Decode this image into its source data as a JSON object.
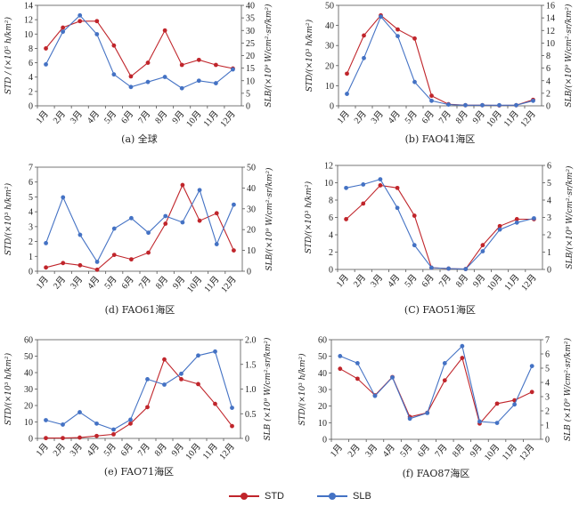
{
  "colors": {
    "STD": "#c0252b",
    "SLB": "#4472c4"
  },
  "legend": {
    "std_label": "STD",
    "slb_label": "SLB"
  },
  "chart_data": [
    {
      "type": "line",
      "caption": "(a) 全球",
      "categories": [
        "1月",
        "2月",
        "3月",
        "4月",
        "5月",
        "6月",
        "7月",
        "8月",
        "9月",
        "10月",
        "11月",
        "12月"
      ],
      "ylabel_left": "STD / (×10⁵ h/km²)",
      "ylabel_right": "SLB/(×10⁹ W/cm²·sr/km²)",
      "ylim_left": [
        0,
        14
      ],
      "yticks_left": [
        0,
        2,
        4,
        6,
        8,
        10,
        12,
        14
      ],
      "ylim_right": [
        0,
        40
      ],
      "yticks_right": [
        0,
        5,
        10,
        15,
        20,
        25,
        30,
        35,
        40
      ],
      "series": [
        {
          "name": "STD",
          "axis": "left",
          "values": [
            8.0,
            10.9,
            11.8,
            11.8,
            8.4,
            4.1,
            6.0,
            10.5,
            5.7,
            6.4,
            5.7,
            5.2
          ]
        },
        {
          "name": "SLB",
          "axis": "right",
          "values": [
            16.5,
            29.5,
            36.0,
            28.5,
            12.5,
            7.5,
            9.5,
            11.5,
            7.0,
            10.0,
            9.0,
            14.5
          ]
        }
      ]
    },
    {
      "type": "line",
      "caption": "(b) FAO41海区",
      "categories": [
        "1月",
        "2月",
        "3月",
        "4月",
        "5月",
        "6月",
        "7月",
        "8月",
        "9月",
        "10月",
        "11月",
        "12月"
      ],
      "ylabel_left": "STD/(×10³ h/km²)",
      "ylabel_right": "SLB/(×10⁹ W/cm²·sr/km²)",
      "ylim_left": [
        0,
        50
      ],
      "yticks_left": [
        0,
        10,
        20,
        30,
        40,
        50
      ],
      "ylim_right": [
        0,
        16
      ],
      "yticks_right": [
        0,
        2,
        4,
        6,
        8,
        10,
        12,
        14,
        16
      ],
      "series": [
        {
          "name": "STD",
          "axis": "left",
          "values": [
            16,
            35,
            45,
            38,
            33.5,
            5,
            0.8,
            0.3,
            0.3,
            0.2,
            0.3,
            3
          ]
        },
        {
          "name": "SLB",
          "axis": "right",
          "values": [
            1.9,
            7.6,
            14.2,
            11.1,
            3.8,
            0.8,
            0.2,
            0.1,
            0.1,
            0.1,
            0.1,
            0.8
          ]
        }
      ]
    },
    {
      "type": "line",
      "caption": "(d) FAO61海区",
      "categories": [
        "1月",
        "2月",
        "3月",
        "4月",
        "5月",
        "6月",
        "7月",
        "8月",
        "9月",
        "10月",
        "11月",
        "12月"
      ],
      "ylabel_left": "STD/(×10³ h/km²)",
      "ylabel_right": "SLB/(×10⁹ W/cm²·sr/km²)",
      "ylim_left": [
        0,
        7
      ],
      "yticks_left": [
        0,
        1,
        2,
        3,
        4,
        5,
        6,
        7
      ],
      "ylim_right": [
        0,
        50
      ],
      "yticks_right": [
        0,
        10,
        20,
        30,
        40,
        50
      ],
      "series": [
        {
          "name": "STD",
          "axis": "left",
          "values": [
            0.25,
            0.55,
            0.4,
            0.1,
            1.1,
            0.8,
            1.25,
            3.2,
            5.8,
            3.4,
            3.9,
            1.4
          ]
        },
        {
          "name": "SLB",
          "axis": "right",
          "values": [
            13.5,
            35.5,
            17.5,
            4.5,
            20.5,
            25.5,
            18.5,
            26.5,
            23.5,
            39.0,
            13.0,
            32.0
          ]
        }
      ]
    },
    {
      "type": "line",
      "caption": "(C) FAO51海区",
      "categories": [
        "1月",
        "2月",
        "3月",
        "4月",
        "5月",
        "6月",
        "7月",
        "8月",
        "9月",
        "10月",
        "11月",
        "12月"
      ],
      "ylabel_left": "STD/(×10³ h/km²)",
      "ylabel_right": "SLB/(×10⁹ W/cm²·sr/km²)",
      "ylim_left": [
        0,
        12
      ],
      "yticks_left": [
        0,
        2,
        4,
        6,
        8,
        10,
        12
      ],
      "ylim_right": [
        0,
        6
      ],
      "yticks_right": [
        0,
        1,
        2,
        3,
        4,
        5,
        6
      ],
      "series": [
        {
          "name": "STD",
          "axis": "left",
          "values": [
            5.8,
            7.6,
            9.7,
            9.4,
            6.2,
            0.2,
            0.1,
            0.05,
            2.8,
            5.0,
            5.8,
            5.8
          ]
        },
        {
          "name": "SLB",
          "axis": "right",
          "values": [
            4.7,
            4.9,
            5.2,
            3.55,
            1.4,
            0.1,
            0.05,
            0.02,
            1.05,
            2.3,
            2.7,
            2.95
          ]
        }
      ]
    },
    {
      "type": "line",
      "caption": "(e) FAO71海区",
      "categories": [
        "1月",
        "2月",
        "3月",
        "4月",
        "5月",
        "6月",
        "7月",
        "8月",
        "9月",
        "10月",
        "11月",
        "12月"
      ],
      "ylabel_left": "STD/(×10³ h/km²)",
      "ylabel_right": "SLB (×10⁹ W/cm²·sr/km²)",
      "ylim_left": [
        0,
        60
      ],
      "yticks_left": [
        0,
        10,
        20,
        30,
        40,
        50,
        60
      ],
      "ylim_right": [
        0,
        2.0
      ],
      "yticks_right": [
        0,
        0.5,
        1.0,
        1.5,
        2.0
      ],
      "series": [
        {
          "name": "STD",
          "axis": "left",
          "values": [
            0.2,
            0.2,
            0.5,
            1.5,
            2.5,
            9,
            19,
            48,
            36,
            33,
            21,
            7.5
          ]
        },
        {
          "name": "SLB",
          "axis": "right",
          "values": [
            0.37,
            0.28,
            0.53,
            0.3,
            0.18,
            0.38,
            1.2,
            1.09,
            1.31,
            1.68,
            1.76,
            0.62
          ]
        }
      ]
    },
    {
      "type": "line",
      "caption": "(f) FAO87海区",
      "categories": [
        "1月",
        "2月",
        "3月",
        "4月",
        "5月",
        "6月",
        "7月",
        "8月",
        "9月",
        "10月",
        "11月",
        "12月"
      ],
      "ylabel_left": "STD/(×10³ h/km²)",
      "ylabel_right": "SLB (×10⁹ W/cm²·sr/km²)",
      "ylim_left": [
        0,
        60
      ],
      "yticks_left": [
        0,
        10,
        20,
        30,
        40,
        50,
        60
      ],
      "ylim_right": [
        0,
        7
      ],
      "yticks_right": [
        0,
        1,
        2,
        3,
        4,
        5,
        6,
        7
      ],
      "series": [
        {
          "name": "STD",
          "axis": "left",
          "values": [
            42.5,
            36.5,
            26.5,
            37.5,
            13.5,
            16.0,
            35.5,
            49.0,
            9.5,
            21.5,
            23.5,
            28.5
          ]
        },
        {
          "name": "SLB",
          "axis": "right",
          "values": [
            5.85,
            5.35,
            3.05,
            4.35,
            1.45,
            1.85,
            5.35,
            6.55,
            1.25,
            1.15,
            2.45,
            5.15
          ]
        }
      ]
    }
  ]
}
